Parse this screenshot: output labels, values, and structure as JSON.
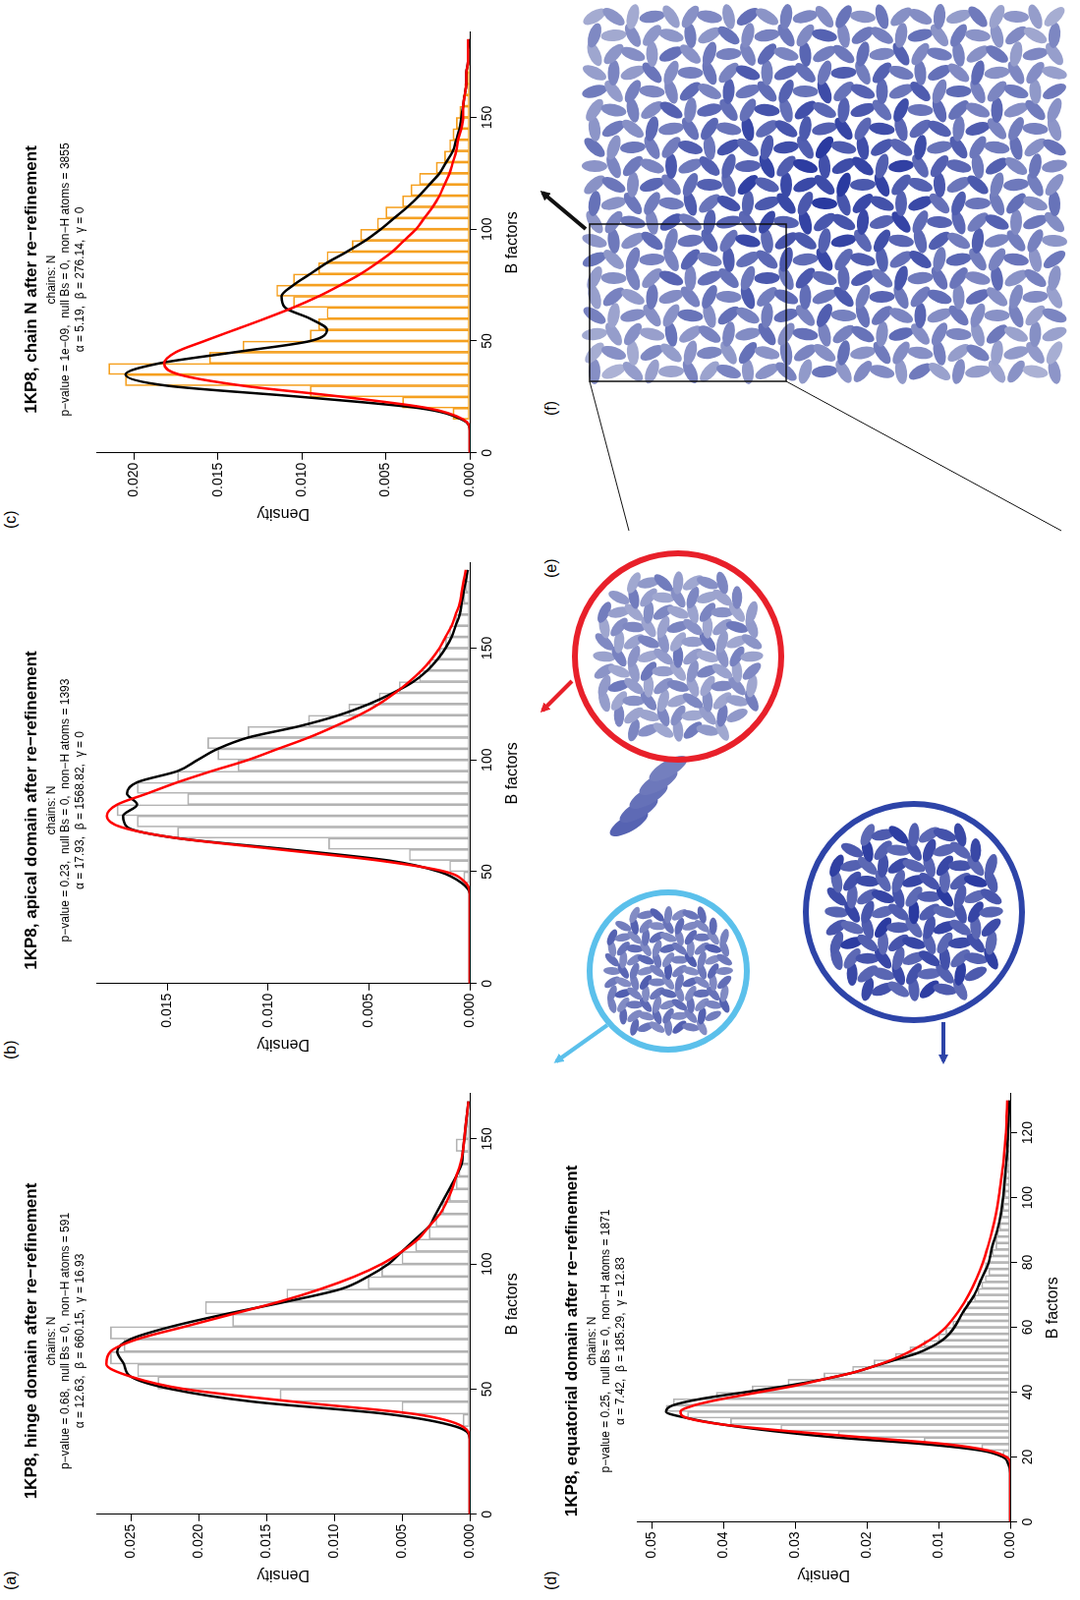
{
  "chart_data": [
    {
      "type": "histogram",
      "panel": "(a)",
      "title": "1KP8, hinge domain after re−refinement",
      "subtitle": [
        "chains: N",
        "p−value = 0.68,  null Bs = 0,  non−H atoms = 591",
        "α = 12.63,  β = 660.15,  γ = 16.93"
      ],
      "x_label": "B factors",
      "y_label": "Density",
      "bins": [
        35,
        40,
        45,
        50,
        55,
        60,
        65,
        70,
        75,
        80,
        85,
        90,
        95,
        100,
        105,
        110,
        115,
        120,
        125,
        130,
        135,
        140,
        145,
        150,
        155,
        160,
        165
      ],
      "values": [
        0.0005,
        0.005,
        0.014,
        0.023,
        0.0245,
        0.0265,
        0.0255,
        0.0265,
        0.0175,
        0.0195,
        0.0135,
        0.0075,
        0.0065,
        0.005,
        0.004,
        0.003,
        0.0025,
        0.002,
        0.0015,
        0.001,
        0.0008,
        0.0006,
        0.001,
        0.0003,
        0.0002,
        0.0001
      ],
      "color": "#b3b3b3",
      "series": [
        {
          "type": "line",
          "color": "#000000",
          "x": [
            0,
            5,
            10,
            15,
            20,
            25,
            30,
            35,
            40,
            45,
            50,
            55,
            60,
            65,
            70,
            75,
            80,
            85,
            90,
            95,
            100,
            105,
            110,
            115,
            120,
            125,
            130,
            135,
            140,
            145,
            150,
            155,
            160,
            165
          ],
          "values": [
            0,
            0,
            0,
            0,
            0,
            0,
            0,
            0.001,
            0.006,
            0.016,
            0.022,
            0.025,
            0.0255,
            0.026,
            0.025,
            0.022,
            0.018,
            0.0135,
            0.0095,
            0.0075,
            0.006,
            0.005,
            0.004,
            0.003,
            0.0025,
            0.002,
            0.0015,
            0.001,
            0.0006,
            0.0005,
            0.0004,
            0.0003,
            0.0002,
            0.0001
          ]
        },
        {
          "type": "line",
          "color": "#ff0000",
          "x": [
            0,
            5,
            10,
            15,
            20,
            25,
            30,
            35,
            40,
            45,
            50,
            55,
            60,
            65,
            70,
            75,
            80,
            85,
            90,
            95,
            100,
            105,
            110,
            115,
            120,
            125,
            130,
            135,
            140,
            145,
            150,
            155,
            160,
            165
          ],
          "values": [
            0,
            0,
            0,
            0,
            0,
            0,
            0,
            0.0005,
            0.004,
            0.013,
            0.021,
            0.025,
            0.0268,
            0.0265,
            0.0245,
            0.021,
            0.0175,
            0.014,
            0.011,
            0.0085,
            0.0065,
            0.005,
            0.0038,
            0.003,
            0.0022,
            0.0017,
            0.0013,
            0.001,
            0.0007,
            0.0005,
            0.0004,
            0.0003,
            0.0002,
            0.0001
          ]
        }
      ],
      "xlim": [
        0,
        168
      ],
      "xticks": [
        0,
        50,
        100,
        150
      ],
      "ylim": [
        0,
        0.0275
      ],
      "yticks": [
        {
          "value": 0,
          "label": "0.000"
        },
        0.005,
        {
          "value": 0.01,
          "label": "0.010"
        },
        0.015,
        {
          "value": 0.02,
          "label": "0.020"
        },
        0.025
      ],
      "grid": false
    },
    {
      "type": "histogram",
      "panel": "(b)",
      "title": "1KP8, apical domain after re−refinement",
      "subtitle": [
        "chains: N",
        "p−value = 0.23,  null Bs = 0,  non−H atoms = 1393",
        "α = 17.93,  β = 1568.82,  γ = 0"
      ],
      "x_label": "B factors",
      "y_label": "Density",
      "bins": [
        45,
        50,
        55,
        60,
        65,
        70,
        75,
        80,
        85,
        90,
        95,
        100,
        105,
        110,
        115,
        120,
        125,
        130,
        135,
        140,
        145,
        150,
        155,
        160,
        165,
        170,
        175,
        180
      ],
      "values": [
        0.0003,
        0.001,
        0.003,
        0.007,
        0.0145,
        0.0165,
        0.0175,
        0.014,
        0.0165,
        0.0145,
        0.0115,
        0.0125,
        0.013,
        0.011,
        0.008,
        0.006,
        0.0045,
        0.0035,
        0.0025,
        0.002,
        0.0015,
        0.0012,
        0.001,
        0.0007,
        0.0005,
        0.0003,
        0.0002
      ],
      "color": "#b3b3b3",
      "series": [
        {
          "type": "line",
          "color": "#000000",
          "x": [
            0,
            5,
            10,
            15,
            20,
            25,
            30,
            35,
            40,
            45,
            50,
            55,
            60,
            65,
            70,
            75,
            80,
            85,
            90,
            95,
            100,
            105,
            110,
            115,
            120,
            125,
            130,
            135,
            140,
            145,
            150,
            155,
            160,
            165,
            170,
            175,
            180,
            185
          ],
          "values": [
            0,
            0,
            0,
            0,
            0,
            0,
            0,
            0,
            0,
            0.0004,
            0.0015,
            0.004,
            0.009,
            0.0145,
            0.017,
            0.0172,
            0.0165,
            0.017,
            0.0165,
            0.0145,
            0.0135,
            0.0125,
            0.011,
            0.0085,
            0.0065,
            0.005,
            0.0038,
            0.0028,
            0.0021,
            0.0016,
            0.0012,
            0.0009,
            0.0007,
            0.0005,
            0.0004,
            0.0003,
            0.0002,
            0.0001
          ]
        },
        {
          "type": "line",
          "color": "#ff0000",
          "x": [
            0,
            5,
            10,
            15,
            20,
            25,
            30,
            35,
            40,
            45,
            50,
            55,
            60,
            65,
            70,
            75,
            80,
            85,
            90,
            95,
            100,
            105,
            110,
            115,
            120,
            125,
            130,
            135,
            140,
            145,
            150,
            155,
            160,
            165,
            170,
            175,
            180,
            185
          ],
          "values": [
            0,
            0,
            0,
            0,
            0,
            0,
            0,
            0,
            0,
            0.0002,
            0.0012,
            0.0045,
            0.0095,
            0.0145,
            0.0173,
            0.018,
            0.0175,
            0.016,
            0.0145,
            0.0128,
            0.011,
            0.0095,
            0.008,
            0.0067,
            0.0055,
            0.0045,
            0.0037,
            0.003,
            0.0024,
            0.0019,
            0.0015,
            0.0012,
            0.0009,
            0.0007,
            0.0005,
            0.0004,
            0.0003,
            0.0002
          ]
        }
      ],
      "xlim": [
        0,
        188
      ],
      "xticks": [
        0,
        50,
        100,
        150
      ],
      "ylim": [
        0,
        0.0185
      ],
      "yticks": [
        {
          "value": 0,
          "label": "0.000"
        },
        0.005,
        {
          "value": 0.01,
          "label": "0.010"
        },
        0.015
      ],
      "grid": false
    },
    {
      "type": "histogram",
      "panel": "(c)",
      "title": "1KP8, chain N after re−refinement",
      "subtitle": [
        "chains: N",
        "p−value = 1e−09,  null Bs = 0,  non−H atoms = 3855",
        "α = 5.19,  β = 276.14,  γ = 0"
      ],
      "x_label": "B factors",
      "y_label": "Density",
      "bins": [
        15,
        20,
        25,
        30,
        35,
        40,
        45,
        50,
        55,
        60,
        65,
        70,
        75,
        80,
        85,
        90,
        95,
        100,
        105,
        110,
        115,
        120,
        125,
        130,
        135,
        140,
        145,
        150,
        155,
        160,
        165,
        170,
        175,
        180
      ],
      "values": [
        0.001,
        0.004,
        0.0095,
        0.0205,
        0.0215,
        0.0155,
        0.0135,
        0.0095,
        0.009,
        0.0085,
        0.0105,
        0.0115,
        0.0105,
        0.009,
        0.0085,
        0.007,
        0.0065,
        0.0055,
        0.005,
        0.004,
        0.0035,
        0.003,
        0.002,
        0.0015,
        0.0012,
        0.001,
        0.0008,
        0.0006,
        0.0004,
        0.0003,
        0.0002,
        0.0001,
        0.0001
      ],
      "color": "#f5a020",
      "series": [
        {
          "type": "line",
          "color": "#000000",
          "x": [
            0,
            5,
            10,
            15,
            20,
            25,
            30,
            35,
            40,
            45,
            50,
            55,
            60,
            65,
            70,
            75,
            80,
            85,
            90,
            95,
            100,
            105,
            110,
            115,
            120,
            125,
            130,
            135,
            140,
            145,
            150,
            155,
            160,
            165,
            170,
            175,
            180,
            185
          ],
          "values": [
            0,
            0,
            0,
            0.0005,
            0.003,
            0.01,
            0.018,
            0.0205,
            0.0185,
            0.014,
            0.0095,
            0.0085,
            0.0095,
            0.011,
            0.0112,
            0.0105,
            0.0095,
            0.0085,
            0.0073,
            0.0062,
            0.0053,
            0.0045,
            0.0037,
            0.003,
            0.0024,
            0.0018,
            0.0014,
            0.001,
            0.0008,
            0.0006,
            0.0005,
            0.0004,
            0.0003,
            0.0002,
            0.0002,
            0.0001,
            0.0001,
            0
          ]
        },
        {
          "type": "line",
          "color": "#ff0000",
          "x": [
            0,
            5,
            10,
            15,
            20,
            25,
            30,
            35,
            40,
            45,
            50,
            55,
            60,
            65,
            70,
            75,
            80,
            85,
            90,
            95,
            100,
            105,
            110,
            115,
            120,
            125,
            130,
            135,
            140,
            145,
            150,
            155,
            160,
            165,
            170,
            175,
            180,
            185
          ],
          "values": [
            0,
            0,
            0,
            0.0004,
            0.0025,
            0.0075,
            0.0135,
            0.0173,
            0.0182,
            0.0175,
            0.0158,
            0.014,
            0.0122,
            0.0105,
            0.009,
            0.0077,
            0.0065,
            0.0055,
            0.0046,
            0.0039,
            0.0032,
            0.0027,
            0.0022,
            0.0018,
            0.0015,
            0.0012,
            0.001,
            0.0008,
            0.0007,
            0.0005,
            0.0004,
            0.0004,
            0.0003,
            0.0002,
            0.0002,
            0.0001,
            0.0001,
            0.0001
          ]
        }
      ],
      "xlim": [
        0,
        188
      ],
      "xticks": [
        0,
        50,
        100,
        150
      ],
      "ylim": [
        0,
        0.0222
      ],
      "yticks": [
        {
          "value": 0,
          "label": "0.000"
        },
        0.005,
        {
          "value": 0.01,
          "label": "0.010"
        },
        0.015,
        {
          "value": 0.02,
          "label": "0.020"
        }
      ],
      "grid": false
    },
    {
      "type": "histogram",
      "panel": "(d)",
      "title": "1KP8, equatorial domain after re−refinement",
      "subtitle": [
        "chains: N",
        "p−value = 0.25,  null Bs = 0,  non−H atoms = 1871",
        "α = 7.42,  β = 185.29,  γ = 12.83"
      ],
      "x_label": "B factors",
      "y_label": "Density",
      "bins": [
        20,
        22,
        24,
        26,
        28,
        30,
        32,
        34,
        36,
        38,
        40,
        42,
        44,
        46,
        48,
        50,
        52,
        54,
        56,
        58,
        60,
        62,
        64,
        66,
        68,
        70,
        72,
        74,
        76,
        78,
        80,
        82,
        84,
        86,
        88,
        90,
        92,
        94,
        96,
        98,
        100,
        102,
        104,
        106,
        108,
        110,
        112,
        114,
        116,
        118,
        120,
        122,
        124,
        126,
        128,
        130
      ],
      "values": [
        0.001,
        0.004,
        0.012,
        0.024,
        0.032,
        0.039,
        0.045,
        0.048,
        0.047,
        0.041,
        0.036,
        0.031,
        0.026,
        0.022,
        0.019,
        0.016,
        0.014,
        0.012,
        0.01,
        0.009,
        0.008,
        0.007,
        0.0065,
        0.006,
        0.005,
        0.0045,
        0.004,
        0.0035,
        0.003,
        0.0035,
        0.003,
        0.0025,
        0.002,
        0.002,
        0.0018,
        0.0015,
        0.0015,
        0.0012,
        0.001,
        0.001,
        0.0008,
        0.0008,
        0.0007,
        0.0006,
        0.0005,
        0.0005,
        0.0004,
        0.0004,
        0.0003,
        0.0003,
        0.0002,
        0.0002,
        0.0002,
        0.0001,
        0.0001
      ],
      "color": "#b3b3b3",
      "series": [
        {
          "type": "line",
          "color": "#000000",
          "x": [
            0,
            5,
            10,
            15,
            18,
            20,
            22,
            24,
            26,
            28,
            30,
            32,
            34,
            36,
            38,
            40,
            42,
            44,
            46,
            48,
            50,
            52,
            54,
            56,
            58,
            60,
            65,
            70,
            75,
            80,
            85,
            90,
            95,
            100,
            105,
            110,
            115,
            120,
            125,
            130
          ],
          "values": [
            0,
            0,
            0,
            0,
            0.0003,
            0.001,
            0.004,
            0.012,
            0.024,
            0.033,
            0.04,
            0.045,
            0.048,
            0.047,
            0.043,
            0.037,
            0.031,
            0.026,
            0.022,
            0.019,
            0.016,
            0.013,
            0.011,
            0.0095,
            0.0085,
            0.0078,
            0.0065,
            0.005,
            0.004,
            0.003,
            0.0025,
            0.0018,
            0.0013,
            0.001,
            0.0008,
            0.0006,
            0.0004,
            0.0003,
            0.0002,
            0.0001
          ]
        },
        {
          "type": "line",
          "color": "#ff0000",
          "x": [
            0,
            5,
            10,
            15,
            18,
            20,
            22,
            24,
            26,
            28,
            30,
            32,
            34,
            36,
            38,
            40,
            42,
            44,
            46,
            48,
            50,
            52,
            54,
            56,
            58,
            60,
            65,
            70,
            75,
            80,
            85,
            90,
            95,
            100,
            105,
            110,
            115,
            120,
            125,
            130
          ],
          "values": [
            0,
            0,
            0,
            0,
            0,
            0.0005,
            0.003,
            0.009,
            0.02,
            0.031,
            0.04,
            0.045,
            0.046,
            0.044,
            0.04,
            0.035,
            0.03,
            0.026,
            0.022,
            0.019,
            0.0165,
            0.0145,
            0.0128,
            0.0113,
            0.01,
            0.009,
            0.0072,
            0.0058,
            0.0047,
            0.0038,
            0.0031,
            0.0025,
            0.002,
            0.0016,
            0.0013,
            0.001,
            0.0008,
            0.0006,
            0.0005,
            0.0004
          ]
        }
      ],
      "xlim": [
        0,
        132
      ],
      "xticks": [
        0,
        20,
        40,
        60,
        80,
        100,
        120
      ],
      "ylim": [
        0,
        0.052
      ],
      "yticks": [
        {
          "value": 0,
          "label": "0.00"
        },
        0.01,
        0.02,
        0.03,
        0.04,
        0.05
      ],
      "grid": false
    }
  ],
  "images": [
    {
      "panel": "(e)"
    },
    {
      "panel": "(f)"
    }
  ]
}
